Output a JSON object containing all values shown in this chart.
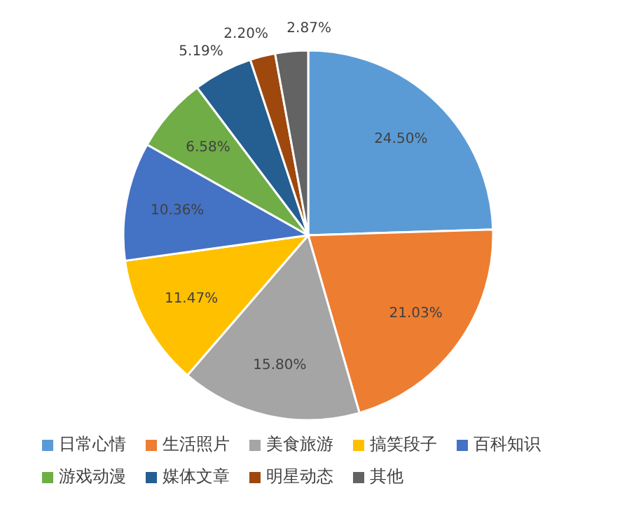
{
  "chart_data": {
    "type": "pie",
    "categories": [
      "日常心情",
      "生活照片",
      "美食旅游",
      "搞笑段子",
      "百科知识",
      "游戏动漫",
      "媒体文章",
      "明星动态",
      "其他"
    ],
    "values": [
      24.5,
      21.03,
      15.8,
      11.47,
      10.36,
      6.58,
      5.19,
      2.2,
      2.87
    ],
    "value_labels": [
      "24.50%",
      "21.03%",
      "15.80%",
      "11.47%",
      "10.36%",
      "6.58%",
      "5.19%",
      "2.20%",
      "2.87%"
    ],
    "colors": [
      "#5b9bd5",
      "#ed7d31",
      "#a5a5a5",
      "#ffc000",
      "#4472c4",
      "#70ad47",
      "#255e91",
      "#9e480e",
      "#636363"
    ],
    "legend": "bottom"
  }
}
